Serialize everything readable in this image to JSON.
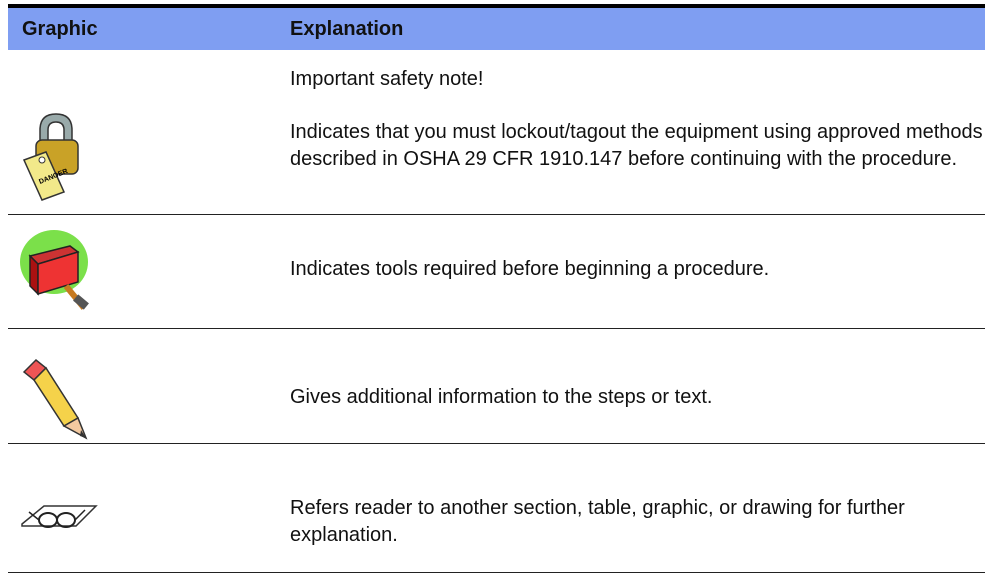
{
  "table": {
    "headers": [
      "Graphic",
      "Explanation"
    ],
    "rows": [
      {
        "icon_label": "DANGER",
        "paragraphs": [
          "Important safety note!",
          "Indicates that you must lockout/tagout the equipment using approved methods described in OSHA 29 CFR 1910.147 before continuing with the procedure."
        ]
      },
      {
        "paragraphs": [
          "Indicates tools required before beginning a procedure."
        ]
      },
      {
        "paragraphs": [
          "Gives additional information to the steps or text."
        ]
      },
      {
        "paragraphs": [
          "Refers reader to another section, table, graphic, or drawing for further explanation."
        ]
      }
    ]
  }
}
